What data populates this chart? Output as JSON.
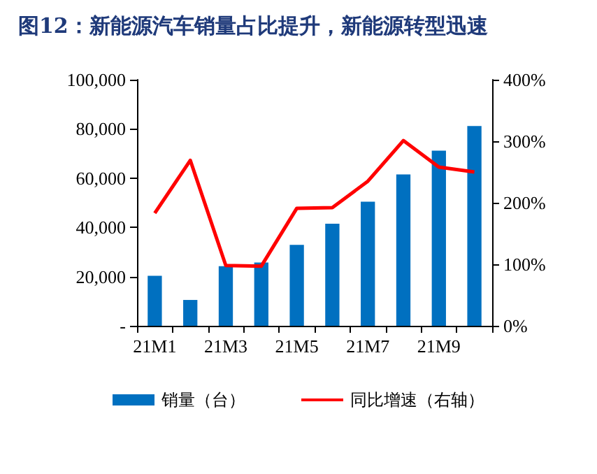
{
  "chart_data": {
    "type": "bar",
    "title": "图12：新能源汽车销量占比提升，新能源转型迅速",
    "categories": [
      "21M1",
      null,
      "21M3",
      null,
      "21M5",
      null,
      "21M7",
      null,
      "21M9",
      null
    ],
    "series": [
      {
        "name": "销量（台）",
        "color": "#0070c0",
        "values": [
          20300,
          10500,
          24200,
          25700,
          32900,
          41500,
          50400,
          61500,
          71200,
          81200
        ]
      },
      {
        "name": "同比增速（右轴）",
        "type": "line",
        "axis": "y2",
        "color": "#ff0000",
        "values": [
          183,
          269,
          98,
          97,
          191,
          192,
          235,
          301,
          258,
          250
        ]
      }
    ],
    "ylim": [
      0,
      100000
    ],
    "yticks": [
      {
        "value": 0,
        "label": "-"
      },
      {
        "value": 20000,
        "label": "20,000"
      },
      {
        "value": 40000,
        "label": "40,000"
      },
      {
        "value": 60000,
        "label": "60,000"
      },
      {
        "value": 80000,
        "label": "80,000"
      },
      {
        "value": 100000,
        "label": "100,000"
      }
    ],
    "y2lim": [
      0,
      400
    ],
    "y2ticks": [
      {
        "value": 0,
        "label": "0%"
      },
      {
        "value": 100,
        "label": "100%"
      },
      {
        "value": 200,
        "label": "200%"
      },
      {
        "value": 300,
        "label": "300%"
      },
      {
        "value": 400,
        "label": "400%"
      }
    ],
    "grid": false,
    "legend": "bottom",
    "marker": "none"
  }
}
